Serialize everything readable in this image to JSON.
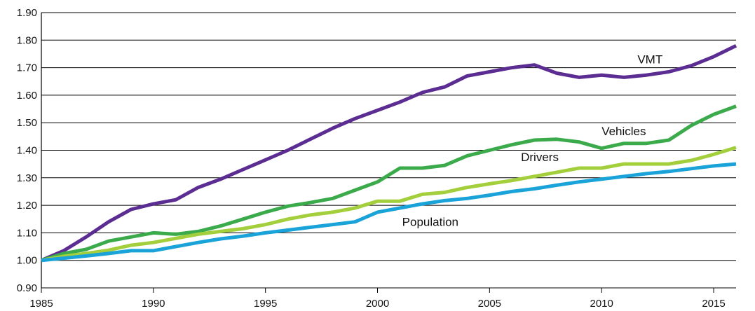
{
  "chart_data": {
    "type": "line",
    "title": "",
    "xlabel": "",
    "ylabel": "",
    "xlim": [
      1985,
      2016
    ],
    "ylim": [
      0.9,
      1.9
    ],
    "x_ticks": [
      1985,
      1990,
      1995,
      2000,
      2005,
      2010,
      2015
    ],
    "y_ticks": [
      "0.90",
      "1.00",
      "1.10",
      "1.20",
      "1.30",
      "1.40",
      "1.50",
      "1.60",
      "1.70",
      "1.80",
      "1.90"
    ],
    "grid": "horizontal",
    "x": [
      1985,
      1986,
      1987,
      1988,
      1989,
      1990,
      1991,
      1992,
      1993,
      1994,
      1995,
      1996,
      1997,
      1998,
      1999,
      2000,
      2001,
      2002,
      2003,
      2004,
      2005,
      2006,
      2007,
      2008,
      2009,
      2010,
      2011,
      2012,
      2013,
      2014,
      2015,
      2016
    ],
    "series": [
      {
        "name": "VMT",
        "color": "#5b2c91",
        "values": [
          1.0,
          1.035,
          1.085,
          1.14,
          1.185,
          1.205,
          1.22,
          1.265,
          1.295,
          1.33,
          1.365,
          1.4,
          1.44,
          1.48,
          1.515,
          1.545,
          1.575,
          1.61,
          1.63,
          1.67,
          1.685,
          1.7,
          1.71,
          1.68,
          1.665,
          1.673,
          1.665,
          1.673,
          1.685,
          1.707,
          1.74,
          1.78
        ]
      },
      {
        "name": "Vehicles",
        "color": "#3aaa4a",
        "values": [
          1.0,
          1.025,
          1.04,
          1.07,
          1.085,
          1.1,
          1.095,
          1.105,
          1.125,
          1.15,
          1.175,
          1.197,
          1.21,
          1.225,
          1.255,
          1.285,
          1.335,
          1.335,
          1.345,
          1.38,
          1.4,
          1.42,
          1.437,
          1.44,
          1.43,
          1.407,
          1.425,
          1.425,
          1.437,
          1.49,
          1.53,
          1.56
        ]
      },
      {
        "name": "Drivers",
        "color": "#a3cf3d",
        "values": [
          1.0,
          1.015,
          1.025,
          1.037,
          1.055,
          1.065,
          1.08,
          1.095,
          1.105,
          1.115,
          1.13,
          1.15,
          1.165,
          1.175,
          1.19,
          1.215,
          1.215,
          1.24,
          1.247,
          1.265,
          1.278,
          1.29,
          1.305,
          1.32,
          1.335,
          1.335,
          1.35,
          1.35,
          1.35,
          1.363,
          1.385,
          1.41
        ]
      },
      {
        "name": "Population",
        "color": "#1aa3d8",
        "values": [
          1.0,
          1.008,
          1.016,
          1.025,
          1.035,
          1.035,
          1.05,
          1.065,
          1.078,
          1.088,
          1.1,
          1.11,
          1.12,
          1.13,
          1.14,
          1.175,
          1.19,
          1.205,
          1.217,
          1.225,
          1.237,
          1.25,
          1.26,
          1.273,
          1.285,
          1.295,
          1.305,
          1.315,
          1.323,
          1.333,
          1.343,
          1.35
        ]
      }
    ],
    "annotations": [
      {
        "series": "VMT",
        "text": "VMT",
        "at_x": 2011.6,
        "at_y": 1.715
      },
      {
        "series": "Vehicles",
        "text": "Vehicles",
        "at_x": 2010.0,
        "at_y": 1.455
      },
      {
        "series": "Drivers",
        "text": "Drivers",
        "at_x": 2006.4,
        "at_y": 1.36
      },
      {
        "series": "Population",
        "text": "Population",
        "at_x": 2001.1,
        "at_y": 1.125
      }
    ]
  }
}
